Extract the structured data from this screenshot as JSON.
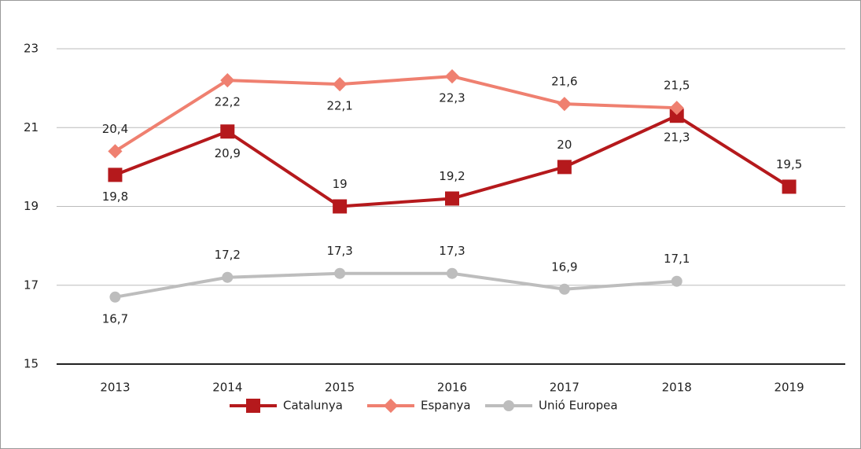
{
  "chart_data": {
    "type": "line",
    "categories": [
      "2013",
      "2014",
      "2015",
      "2016",
      "2017",
      "2018",
      "2019"
    ],
    "series": [
      {
        "name": "Catalunya",
        "color": "#b5191c",
        "marker": "square",
        "values": [
          19.8,
          20.9,
          19,
          19.2,
          20,
          21.3,
          19.5
        ],
        "value_labels": [
          "19,8",
          "20,9",
          "19",
          "19,2",
          "20",
          "21,3",
          "19,5"
        ]
      },
      {
        "name": "Espanya",
        "color": "#ef8070",
        "marker": "diamond",
        "values": [
          20.4,
          22.2,
          22.1,
          22.3,
          21.6,
          21.5,
          null
        ],
        "value_labels": [
          "20,4",
          "22,2",
          "22,1",
          "22,3",
          "21,6",
          "21,5",
          null
        ]
      },
      {
        "name": "Unió Europea",
        "color": "#bdbdbd",
        "marker": "circle",
        "values": [
          16.7,
          17.2,
          17.3,
          17.3,
          16.9,
          17.1,
          null
        ],
        "value_labels": [
          "16,7",
          "17,2",
          "17,3",
          "17,3",
          "16,9",
          "17,1",
          null
        ]
      }
    ],
    "ylim": [
      15,
      23
    ],
    "yticks": [
      15,
      17,
      19,
      21,
      23
    ],
    "grid": true,
    "legend": "bottom"
  }
}
